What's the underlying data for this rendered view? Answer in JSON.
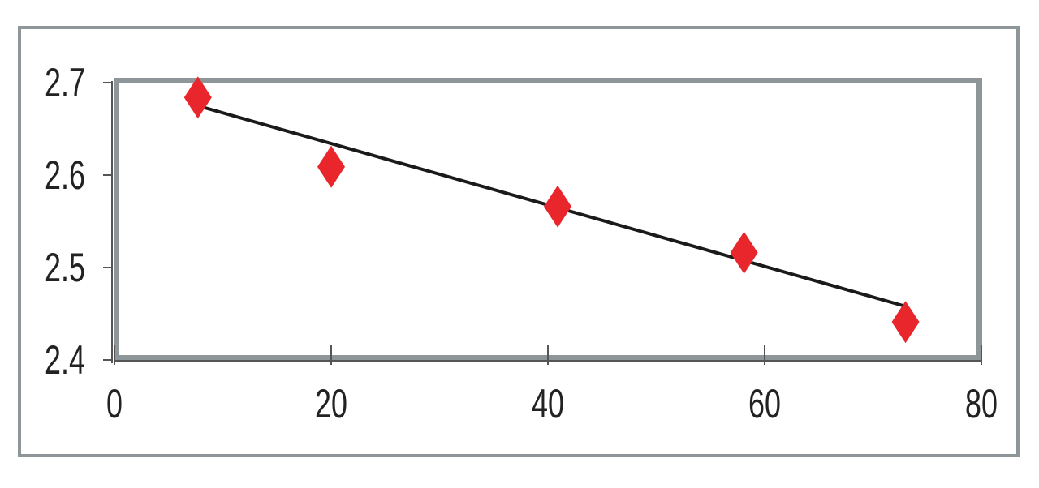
{
  "chart_data": {
    "type": "scatter",
    "title": "",
    "xlabel": "",
    "ylabel": "",
    "xlim": [
      0,
      80
    ],
    "ylim": [
      2.4,
      2.7
    ],
    "x_ticks": [
      "0",
      "20",
      "40",
      "60",
      "80"
    ],
    "y_ticks": [
      "2.4",
      "2.5",
      "2.6",
      "2.7"
    ],
    "grid": false,
    "legend": "none",
    "series": [
      {
        "marker": "diamond",
        "color": "#e8262c",
        "points": [
          {
            "x": 7.7,
            "y": 2.684
          },
          {
            "x": 20,
            "y": 2.609
          },
          {
            "x": 40.9,
            "y": 2.566
          },
          {
            "x": 58.1,
            "y": 2.516
          },
          {
            "x": 73,
            "y": 2.441
          }
        ]
      }
    ],
    "trendline": {
      "type": "linear",
      "color": "#1a1a1a",
      "from": {
        "x": 7.7,
        "y": 2.675
      },
      "to": {
        "x": 73,
        "y": 2.458
      }
    },
    "colors": {
      "frame": "#8f969a",
      "plot_border": "#8f969a",
      "axis": "#555555",
      "text": "#222222"
    }
  }
}
